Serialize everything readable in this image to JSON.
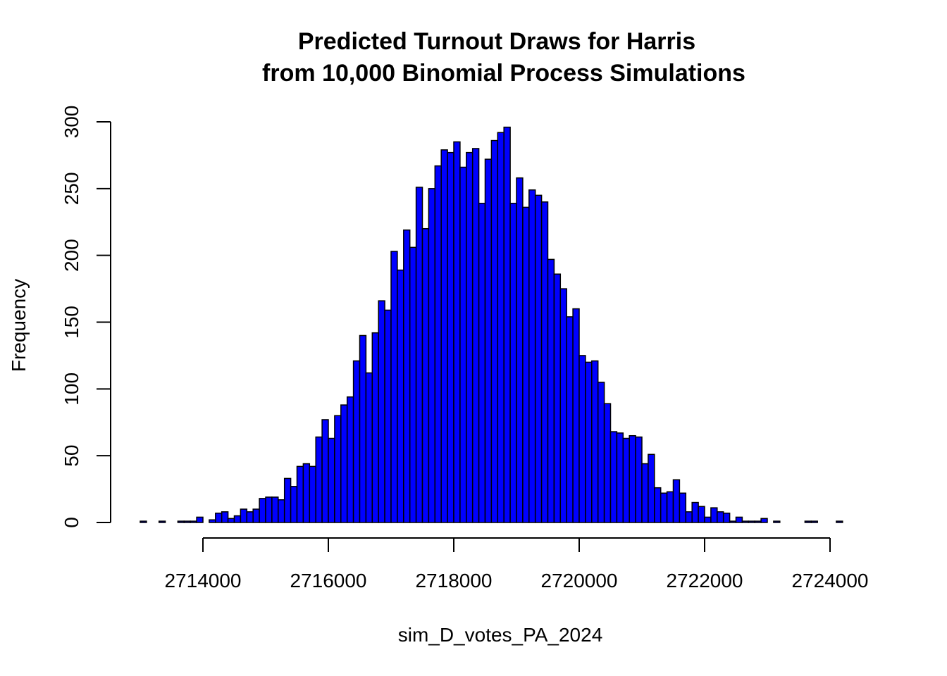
{
  "chart_data": {
    "type": "bar",
    "title_line1": "Predicted Turnout Draws for Harris",
    "title_line2": "from 10,000 Binomial Process Simulations",
    "xlabel": "sim_D_votes_PA_2024",
    "ylabel": "Frequency",
    "bin_start": 2713000,
    "bin_width": 100,
    "xlim": [
      2713000,
      2724500
    ],
    "ylim": [
      0,
      300
    ],
    "x_ticks": [
      2714000,
      2716000,
      2718000,
      2720000,
      2722000,
      2724000
    ],
    "y_ticks": [
      0,
      50,
      100,
      150,
      200,
      250,
      300
    ],
    "x_tick_labels": [
      "2714000",
      "2716000",
      "2718000",
      "2720000",
      "2722000",
      "2724000"
    ],
    "y_tick_labels": [
      "0",
      "50",
      "100",
      "150",
      "200",
      "250",
      "300"
    ],
    "grid": false,
    "bar_color": "#0000ff",
    "values": [
      1,
      0,
      0,
      1,
      0,
      0,
      1,
      1,
      1,
      4,
      0,
      2,
      7,
      8,
      3,
      5,
      10,
      8,
      10,
      18,
      19,
      19,
      17,
      33,
      27,
      42,
      44,
      42,
      64,
      77,
      63,
      80,
      88,
      94,
      121,
      140,
      112,
      142,
      166,
      159,
      203,
      189,
      219,
      206,
      251,
      220,
      250,
      267,
      279,
      277,
      285,
      266,
      277,
      280,
      239,
      272,
      286,
      292,
      296,
      239,
      258,
      236,
      249,
      245,
      240,
      197,
      186,
      175,
      154,
      160,
      125,
      120,
      121,
      105,
      89,
      68,
      67,
      63,
      65,
      64,
      44,
      51,
      26,
      22,
      23,
      32,
      22,
      8,
      15,
      12,
      4,
      11,
      8,
      7,
      1,
      4,
      1,
      1,
      1,
      3,
      0,
      1,
      0,
      0,
      0,
      0,
      1,
      1,
      0,
      0,
      0,
      1
    ]
  }
}
